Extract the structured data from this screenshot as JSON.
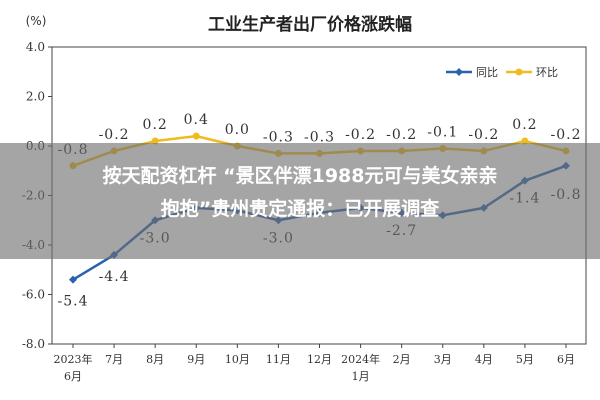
{
  "chart_data": {
    "type": "line",
    "title": "工业生产者出厂价格涨跌幅",
    "ylabel": "(%)",
    "ylim": [
      -8.0,
      4.0
    ],
    "yticks": [
      "4.0",
      "2.0",
      "0.0",
      "-2.0",
      "-4.0",
      "-6.0",
      "-8.0"
    ],
    "categories": [
      [
        "2023年",
        "6月"
      ],
      [
        "7月"
      ],
      [
        "8月"
      ],
      [
        "9月"
      ],
      [
        "10月"
      ],
      [
        "11月"
      ],
      [
        "12月"
      ],
      [
        "2024年",
        "1月"
      ],
      [
        "2月"
      ],
      [
        "3月"
      ],
      [
        "4月"
      ],
      [
        "5月"
      ],
      [
        "6月"
      ]
    ],
    "series": [
      {
        "name": "同比",
        "color": "#2a63ad",
        "values": [
          -5.4,
          -4.4,
          -3.0,
          -2.5,
          -2.6,
          -3.0,
          -2.7,
          -2.5,
          -2.7,
          -2.8,
          -2.5,
          -1.4,
          -0.8
        ],
        "labels": [
          "-5.4",
          "-4.4",
          "-3.0",
          "",
          "",
          "-3.0",
          "",
          "",
          "-2.7",
          "",
          "",
          "-1.4",
          "-0.8"
        ]
      },
      {
        "name": "环比",
        "color": "#f0bb1e",
        "values": [
          -0.8,
          -0.2,
          0.2,
          0.4,
          0.0,
          -0.3,
          -0.3,
          -0.2,
          -0.2,
          -0.1,
          -0.2,
          0.2,
          -0.2
        ],
        "labels": [
          "-0.8",
          "-0.2",
          "0.2",
          "0.4",
          "0.0",
          "-0.3",
          "-0.3",
          "-0.2",
          "-0.2",
          "-0.1",
          "-0.2",
          "0.2",
          "-0.2"
        ]
      }
    ],
    "legend_position": "top-right",
    "grid": false
  },
  "headline": {
    "line1": "按天配资杠杆 “景区伴漂1988元可与美女亲亲",
    "line2": "抱抱”贵州贵定通报：已开展调查"
  }
}
